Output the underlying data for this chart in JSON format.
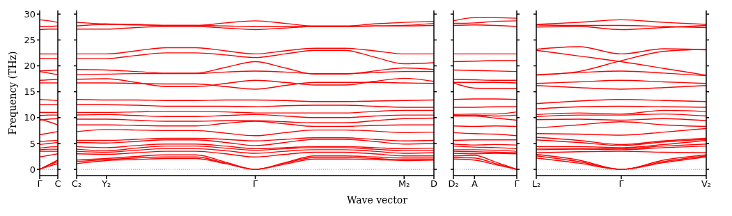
{
  "chart_data": [
    {
      "type": "line",
      "ylabel": "Frequency (THz)",
      "categories": [
        "Γ",
        null,
        "C"
      ],
      "ylim": [
        -1.2,
        30.7
      ],
      "yticks": [
        0,
        5,
        10,
        15,
        20,
        25,
        30
      ],
      "ref_lines": [
        {
          "axis": "y",
          "value": 0,
          "color": "#8080ff",
          "line_style": "dotted"
        }
      ],
      "series": [
        {
          "color": "#ff0000",
          "values": [
            28.9,
            28.7,
            28.4
          ]
        },
        {
          "color": "#ff0000",
          "values": [
            27.6,
            27.6,
            27.7
          ]
        },
        {
          "color": "#ff0000",
          "values": [
            27.0,
            27.1,
            27.1
          ]
        },
        {
          "color": "#ff0000",
          "values": [
            22.3,
            22.3,
            22.3
          ]
        },
        {
          "color": "#ff0000",
          "values": [
            21.4,
            21.4,
            21.4
          ]
        },
        {
          "color": "#ff0000",
          "values": [
            19.0,
            19.1,
            19.2
          ]
        },
        {
          "color": "#ff0000",
          "values": [
            18.9,
            18.6,
            18.3
          ]
        },
        {
          "color": "#ff0000",
          "values": [
            17.2,
            17.3,
            17.4
          ]
        },
        {
          "color": "#ff0000",
          "values": [
            16.7,
            16.7,
            16.7
          ]
        },
        {
          "color": "#ff0000",
          "values": [
            13.5,
            13.4,
            13.3
          ]
        },
        {
          "color": "#ff0000",
          "values": [
            12.5,
            12.5,
            12.5
          ]
        },
        {
          "color": "#ff0000",
          "values": [
            11.0,
            11.0,
            11.0
          ]
        },
        {
          "color": "#ff0000",
          "values": [
            10.4,
            10.5,
            10.5
          ]
        },
        {
          "color": "#ff0000",
          "values": [
            9.5,
            9.7,
            9.8
          ]
        },
        {
          "color": "#ff0000",
          "values": [
            9.7,
            9.2,
            8.6
          ]
        },
        {
          "color": "#ff0000",
          "values": [
            6.7,
            7.0,
            7.3
          ]
        },
        {
          "color": "#ff0000",
          "values": [
            5.4,
            5.5,
            5.6
          ]
        },
        {
          "color": "#ff0000",
          "values": [
            4.8,
            5.0,
            5.2
          ]
        },
        {
          "color": "#ff0000",
          "values": [
            4.1,
            4.3,
            4.4
          ]
        },
        {
          "color": "#ff0000",
          "values": [
            3.8,
            3.9,
            3.9
          ]
        },
        {
          "color": "#ff0000",
          "values": [
            3.5,
            3.5,
            3.5
          ]
        },
        {
          "color": "#ff0000",
          "values": [
            2.4,
            2.7,
            3.0
          ]
        },
        {
          "color": "#ff0000",
          "values": [
            0,
            0.9,
            1.8
          ]
        },
        {
          "color": "#ff0000",
          "values": [
            0,
            0.8,
            1.5
          ]
        },
        {
          "color": "#ff0000",
          "values": [
            0,
            0.6,
            1.1
          ]
        }
      ]
    },
    {
      "type": "line",
      "xlabel": "Wave vector",
      "categories": [
        "C₂",
        "Y₂",
        null,
        null,
        null,
        null,
        "Γ",
        null,
        null,
        null,
        null,
        "M₂",
        "D"
      ],
      "ylim": [
        -1.2,
        30.7
      ],
      "yticks": [
        {
          "value": 0,
          "label": null
        },
        {
          "value": 5,
          "label": null
        },
        {
          "value": 10,
          "label": null
        },
        {
          "value": 15,
          "label": null
        },
        {
          "value": 20,
          "label": null
        },
        {
          "value": 25,
          "label": null
        },
        {
          "value": 30,
          "label": null
        }
      ],
      "tick_labels": "x",
      "ref_lines": [
        {
          "axis": "y",
          "value": 0,
          "color": "#8080ff",
          "line_style": "dotted"
        }
      ],
      "series": [
        {
          "color": "#ff0000",
          "values": [
            28.4,
            28.1,
            28.0,
            27.8,
            27.8,
            28.3,
            28.7,
            28.2,
            27.7,
            27.7,
            28.1,
            28.4,
            28.6
          ]
        },
        {
          "color": "#ff0000",
          "values": [
            27.7,
            28.0,
            27.9,
            27.8,
            27.8,
            27.7,
            27.6,
            27.6,
            27.6,
            27.6,
            27.7,
            27.8,
            28.2
          ]
        },
        {
          "color": "#ff0000",
          "values": [
            27.1,
            27.1,
            27.4,
            27.6,
            27.6,
            27.3,
            27.0,
            27.3,
            27.6,
            27.6,
            27.7,
            27.7,
            27.8
          ]
        },
        {
          "color": "#ff0000",
          "values": [
            22.3,
            22.3,
            22.9,
            23.5,
            23.5,
            22.9,
            22.3,
            22.9,
            23.4,
            23.4,
            22.9,
            22.3,
            22.3
          ]
        },
        {
          "color": "#ff0000",
          "values": [
            21.4,
            21.4,
            22.0,
            22.5,
            22.5,
            22.1,
            21.6,
            22.3,
            23.0,
            23.0,
            21.7,
            20.4,
            20.6
          ]
        },
        {
          "color": "#ff0000",
          "values": [
            19.3,
            19.2,
            18.9,
            18.6,
            18.6,
            19.7,
            20.8,
            19.6,
            18.4,
            18.4,
            19.0,
            19.6,
            19.3
          ]
        },
        {
          "color": "#ff0000",
          "values": [
            18.3,
            18.4,
            18.5,
            18.5,
            18.5,
            18.8,
            19.0,
            18.8,
            18.5,
            18.5,
            18.7,
            18.9,
            18.9
          ]
        },
        {
          "color": "#ff0000",
          "values": [
            17.4,
            17.5,
            16.8,
            16.0,
            16.0,
            16.6,
            17.2,
            16.8,
            16.3,
            16.3,
            17.0,
            17.6,
            17.0
          ]
        },
        {
          "color": "#ff0000",
          "values": [
            16.7,
            16.7,
            16.6,
            16.5,
            16.5,
            16.0,
            15.5,
            16.2,
            16.8,
            16.8,
            16.8,
            16.7,
            16.6
          ]
        },
        {
          "color": "#ff0000",
          "values": [
            13.5,
            13.4,
            13.4,
            13.3,
            13.3,
            13.4,
            13.4,
            13.3,
            13.1,
            13.1,
            13.2,
            13.3,
            13.4
          ]
        },
        {
          "color": "#ff0000",
          "values": [
            12.5,
            12.5,
            12.4,
            12.2,
            12.2,
            12.2,
            12.1,
            12.3,
            12.4,
            12.4,
            12.2,
            12.0,
            12.0
          ]
        },
        {
          "color": "#ff0000",
          "values": [
            11.0,
            11.0,
            11.1,
            11.2,
            11.2,
            11.1,
            10.9,
            10.9,
            10.9,
            10.9,
            11.2,
            11.4,
            11.4
          ]
        },
        {
          "color": "#ff0000",
          "values": [
            10.5,
            10.6,
            10.4,
            10.2,
            10.2,
            10.4,
            10.6,
            10.3,
            10.0,
            10.0,
            10.3,
            10.5,
            10.5
          ]
        },
        {
          "color": "#ff0000",
          "values": [
            9.7,
            9.7,
            9.5,
            9.3,
            9.3,
            9.4,
            9.4,
            9.2,
            9.0,
            9.0,
            9.4,
            9.8,
            9.9
          ]
        },
        {
          "color": "#ff0000",
          "values": [
            8.6,
            8.6,
            8.5,
            8.4,
            8.4,
            8.9,
            9.3,
            8.8,
            8.3,
            8.3,
            8.5,
            8.6,
            8.6
          ]
        },
        {
          "color": "#ff0000",
          "values": [
            7.3,
            7.7,
            7.6,
            7.5,
            7.5,
            7.0,
            6.5,
            7.1,
            7.6,
            7.6,
            7.4,
            7.1,
            7.2
          ]
        },
        {
          "color": "#ff0000",
          "values": [
            5.6,
            5.6,
            5.8,
            6.0,
            6.0,
            5.8,
            5.5,
            5.8,
            6.1,
            6.1,
            5.8,
            5.5,
            5.6
          ]
        },
        {
          "color": "#ff0000",
          "values": [
            5.2,
            5.1,
            5.4,
            5.7,
            5.7,
            5.2,
            4.6,
            5.2,
            5.8,
            5.8,
            5.4,
            4.9,
            5.0
          ]
        },
        {
          "color": "#ff0000",
          "values": [
            4.4,
            4.2,
            4.6,
            4.9,
            4.9,
            4.5,
            4.0,
            4.2,
            4.4,
            4.4,
            4.2,
            4.0,
            4.1
          ]
        },
        {
          "color": "#ff0000",
          "values": [
            3.9,
            3.6,
            4.1,
            4.5,
            4.5,
            4.1,
            3.7,
            4.0,
            4.2,
            4.2,
            3.9,
            3.6,
            3.7
          ]
        },
        {
          "color": "#ff0000",
          "values": [
            3.5,
            3.3,
            3.7,
            4.0,
            4.0,
            3.6,
            3.1,
            3.5,
            3.8,
            3.8,
            3.5,
            3.1,
            3.2
          ]
        },
        {
          "color": "#ff0000",
          "values": [
            3.0,
            2.9,
            3.2,
            3.5,
            3.5,
            3.0,
            2.4,
            2.9,
            3.3,
            3.3,
            3.0,
            2.6,
            2.6
          ]
        },
        {
          "color": "#ff0000",
          "values": [
            1.8,
            2.1,
            2.5,
            2.8,
            2.8,
            1.4,
            0,
            1.3,
            2.6,
            2.6,
            2.4,
            2.2,
            2.2
          ]
        },
        {
          "color": "#ff0000",
          "values": [
            1.5,
            1.9,
            2.2,
            2.4,
            2.4,
            1.2,
            0,
            1.2,
            2.3,
            2.3,
            2.1,
            1.9,
            1.9
          ]
        },
        {
          "color": "#ff0000",
          "values": [
            1.1,
            1.7,
            1.9,
            2.1,
            2.1,
            1.1,
            0,
            1.0,
            2.0,
            2.0,
            1.9,
            1.7,
            1.8
          ]
        }
      ]
    },
    {
      "type": "line",
      "categories": [
        "D₂",
        "A",
        null,
        "Γ"
      ],
      "ylim": [
        -1.2,
        30.7
      ],
      "yticks": [
        {
          "value": 0,
          "label": null
        },
        {
          "value": 5,
          "label": null
        },
        {
          "value": 10,
          "label": null
        },
        {
          "value": 15,
          "label": null
        },
        {
          "value": 20,
          "label": null
        },
        {
          "value": 25,
          "label": null
        },
        {
          "value": 30,
          "label": null
        }
      ],
      "tick_labels": "x",
      "ref_lines": [
        {
          "axis": "y",
          "value": 0,
          "color": "#8080ff",
          "line_style": "dotted"
        }
      ],
      "series": [
        {
          "color": "#ff0000",
          "values": [
            28.7,
            29.3,
            29.3,
            29.2
          ]
        },
        {
          "color": "#ff0000",
          "values": [
            28.2,
            28.3,
            28.6,
            28.7
          ]
        },
        {
          "color": "#ff0000",
          "values": [
            27.8,
            27.9,
            27.8,
            27.6
          ]
        },
        {
          "color": "#ff0000",
          "values": [
            22.3,
            22.3,
            22.3,
            22.3
          ]
        },
        {
          "color": "#ff0000",
          "values": [
            20.8,
            20.9,
            21.0,
            21.0
          ]
        },
        {
          "color": "#ff0000",
          "values": [
            19.2,
            19.1,
            19.0,
            18.9
          ]
        },
        {
          "color": "#ff0000",
          "values": [
            17.4,
            17.3,
            17.2,
            17.2
          ]
        },
        {
          "color": "#ff0000",
          "values": [
            16.8,
            16.8,
            16.8,
            16.7
          ]
        },
        {
          "color": "#ff0000",
          "values": [
            16.7,
            15.7,
            15.6,
            15.6
          ]
        },
        {
          "color": "#ff0000",
          "values": [
            13.5,
            13.6,
            13.6,
            13.5
          ]
        },
        {
          "color": "#ff0000",
          "values": [
            12.0,
            12.0,
            12.1,
            12.1
          ]
        },
        {
          "color": "#ff0000",
          "values": [
            10.6,
            10.7,
            10.7,
            11.1
          ]
        },
        {
          "color": "#ff0000",
          "values": [
            10.4,
            10.5,
            10.3,
            10.5
          ]
        },
        {
          "color": "#ff0000",
          "values": [
            10.3,
            10.3,
            9.9,
            9.5
          ]
        },
        {
          "color": "#ff0000",
          "values": [
            8.4,
            8.3,
            8.4,
            8.3
          ]
        },
        {
          "color": "#ff0000",
          "values": [
            7.1,
            6.9,
            6.8,
            6.5
          ]
        },
        {
          "color": "#ff0000",
          "values": [
            5.6,
            5.7,
            5.7,
            5.7
          ]
        },
        {
          "color": "#ff0000",
          "values": [
            4.9,
            4.7,
            4.8,
            4.7
          ]
        },
        {
          "color": "#ff0000",
          "values": [
            4.5,
            4.3,
            4.2,
            4.0
          ]
        },
        {
          "color": "#ff0000",
          "values": [
            3.8,
            3.8,
            3.7,
            3.5
          ]
        },
        {
          "color": "#ff0000",
          "values": [
            3.5,
            3.4,
            3.3,
            3.2
          ]
        },
        {
          "color": "#ff0000",
          "values": [
            3.1,
            3.0,
            3.1,
            3.0
          ]
        },
        {
          "color": "#ff0000",
          "values": [
            2.6,
            2.7,
            1.4,
            0
          ]
        },
        {
          "color": "#ff0000",
          "values": [
            2.3,
            2.2,
            1.1,
            0
          ]
        },
        {
          "color": "#ff0000",
          "values": [
            2.0,
            1.8,
            0.9,
            0
          ]
        }
      ]
    },
    {
      "type": "line",
      "categories": [
        "L₂",
        null,
        "Γ",
        null,
        "V₂"
      ],
      "ylim": [
        -1.2,
        30.7
      ],
      "yticks": [
        {
          "value": 0,
          "label": null
        },
        {
          "value": 5,
          "label": null
        },
        {
          "value": 10,
          "label": null
        },
        {
          "value": 15,
          "label": null
        },
        {
          "value": 20,
          "label": null
        },
        {
          "value": 25,
          "label": null
        },
        {
          "value": 30,
          "label": null
        }
      ],
      "tick_labels": "x",
      "ref_lines": [
        {
          "axis": "y",
          "value": 0,
          "color": "#8080ff",
          "line_style": "dotted"
        }
      ],
      "series": [
        {
          "color": "#ff0000",
          "values": [
            28.0,
            28.4,
            28.9,
            28.4,
            28.0
          ]
        },
        {
          "color": "#ff0000",
          "values": [
            27.9,
            27.8,
            27.8,
            27.6,
            27.4
          ]
        },
        {
          "color": "#ff0000",
          "values": [
            27.5,
            27.6,
            27.0,
            27.4,
            27.8
          ]
        },
        {
          "color": "#ff0000",
          "values": [
            23.2,
            23.7,
            22.3,
            23.3,
            23.1
          ]
        },
        {
          "color": "#ff0000",
          "values": [
            23.0,
            21.9,
            20.8,
            19.5,
            18.2
          ]
        },
        {
          "color": "#ff0000",
          "values": [
            18.2,
            18.9,
            21.0,
            22.8,
            23.2
          ]
        },
        {
          "color": "#ff0000",
          "values": [
            18.3,
            18.7,
            19.0,
            18.6,
            18.1
          ]
        },
        {
          "color": "#ff0000",
          "values": [
            16.6,
            16.9,
            17.2,
            16.9,
            16.6
          ]
        },
        {
          "color": "#ff0000",
          "values": [
            16.2,
            15.8,
            15.5,
            15.8,
            16.2
          ]
        },
        {
          "color": "#ff0000",
          "values": [
            12.7,
            13.2,
            13.5,
            13.3,
            13.1
          ]
        },
        {
          "color": "#ff0000",
          "values": [
            11.7,
            12.1,
            12.2,
            12.1,
            12.0
          ]
        },
        {
          "color": "#ff0000",
          "values": [
            10.6,
            10.9,
            10.7,
            11.4,
            11.2
          ]
        },
        {
          "color": "#ff0000",
          "values": [
            10.2,
            10.5,
            10.5,
            10.7,
            10.3
          ]
        },
        {
          "color": "#ff0000",
          "values": [
            9.6,
            9.7,
            9.5,
            9.8,
            9.4
          ]
        },
        {
          "color": "#ff0000",
          "values": [
            8.0,
            8.6,
            9.2,
            8.6,
            8.3
          ]
        },
        {
          "color": "#ff0000",
          "values": [
            6.9,
            6.8,
            6.6,
            7.2,
            7.9
          ]
        },
        {
          "color": "#ff0000",
          "values": [
            6.2,
            5.6,
            4.8,
            5.5,
            6.0
          ]
        },
        {
          "color": "#ff0000",
          "values": [
            5.7,
            5.2,
            4.6,
            5.3,
            5.8
          ]
        },
        {
          "color": "#ff0000",
          "values": [
            4.4,
            4.4,
            4.2,
            4.8,
            5.6
          ]
        },
        {
          "color": "#ff0000",
          "values": [
            4.1,
            4.1,
            4.0,
            4.5,
            4.9
          ]
        },
        {
          "color": "#ff0000",
          "values": [
            3.8,
            3.9,
            3.8,
            4.2,
            4.5
          ]
        },
        {
          "color": "#ff0000",
          "values": [
            3.2,
            3.4,
            3.5,
            3.3,
            3.2
          ]
        },
        {
          "color": "#ff0000",
          "values": [
            2.9,
            1.8,
            0,
            1.8,
            2.8
          ]
        },
        {
          "color": "#ff0000",
          "values": [
            2.6,
            1.5,
            0,
            1.5,
            2.6
          ]
        },
        {
          "color": "#ff0000",
          "values": [
            2.2,
            1.2,
            0,
            1.3,
            2.4
          ]
        }
      ]
    }
  ]
}
